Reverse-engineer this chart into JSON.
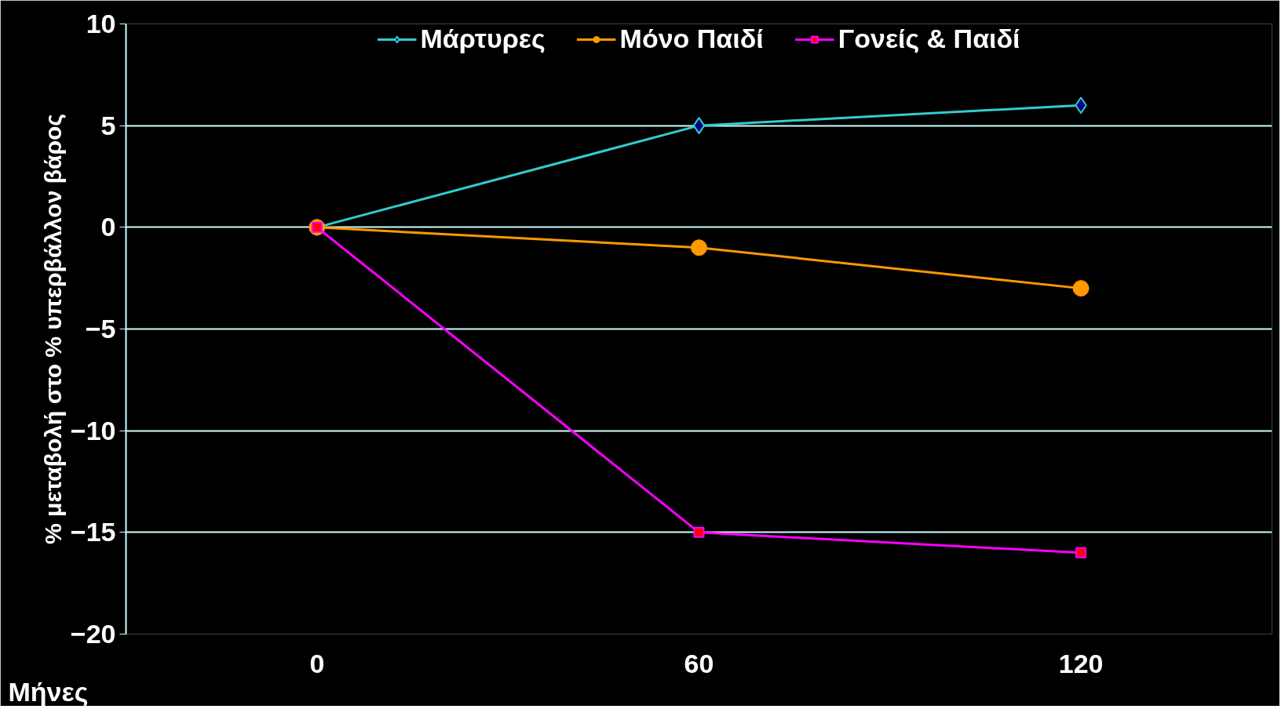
{
  "chart_data": {
    "type": "line",
    "xlabel": "Μήνες",
    "ylabel": "% μεταβολή στο % υπερβάλλον βάρος",
    "categories": [
      "0",
      "60",
      "120"
    ],
    "series": [
      {
        "name": "Μάρτυρες",
        "color": "#33cccc",
        "marker": "diamond",
        "values": [
          0,
          5,
          6
        ]
      },
      {
        "name": "Μόνο Παιδί",
        "color": "#ff9900",
        "marker": "circle",
        "values": [
          0,
          -1,
          -3
        ]
      },
      {
        "name": "Γονείς & Παιδί",
        "color": "#ff00ff",
        "marker": "square",
        "values": [
          0,
          -15,
          -16
        ]
      }
    ],
    "ylim": [
      -20,
      10
    ],
    "yticks": [
      -20,
      -15,
      -10,
      -5,
      0,
      5,
      10
    ],
    "grid": "y",
    "legend": "top"
  }
}
